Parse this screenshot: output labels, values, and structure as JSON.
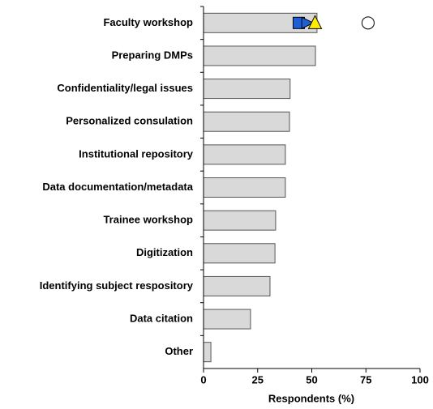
{
  "chart_data": {
    "type": "bar",
    "orientation": "horizontal",
    "categories": [
      "Faculty workshop",
      "Preparing DMPs",
      "Confidentiality/legal issues",
      "Personalized consulation",
      "Institutional repository",
      "Data documentation/metadata",
      "Trainee workshop",
      "Digitization",
      "Identifying subject respository",
      "Data citation",
      "Other"
    ],
    "values": [
      52.4,
      51.7,
      40,
      39.7,
      37.8,
      37.8,
      33.3,
      33,
      30.7,
      21.7,
      3.4
    ],
    "color": "#d9d9d9",
    "xlim": [
      0,
      100
    ],
    "xticks": [
      0,
      25,
      50,
      75,
      100
    ],
    "xlabel": "Respondents (%)",
    "markers": [
      {
        "shape": "square",
        "color": "#1f5fd6",
        "value": 44
      },
      {
        "shape": "triangle-right",
        "color": "#1f5fd6",
        "value": 48
      },
      {
        "shape": "triangle",
        "color": "#ffec00",
        "value": 51.5
      },
      {
        "shape": "circle",
        "color": "#ffffff",
        "value": 76
      }
    ]
  }
}
